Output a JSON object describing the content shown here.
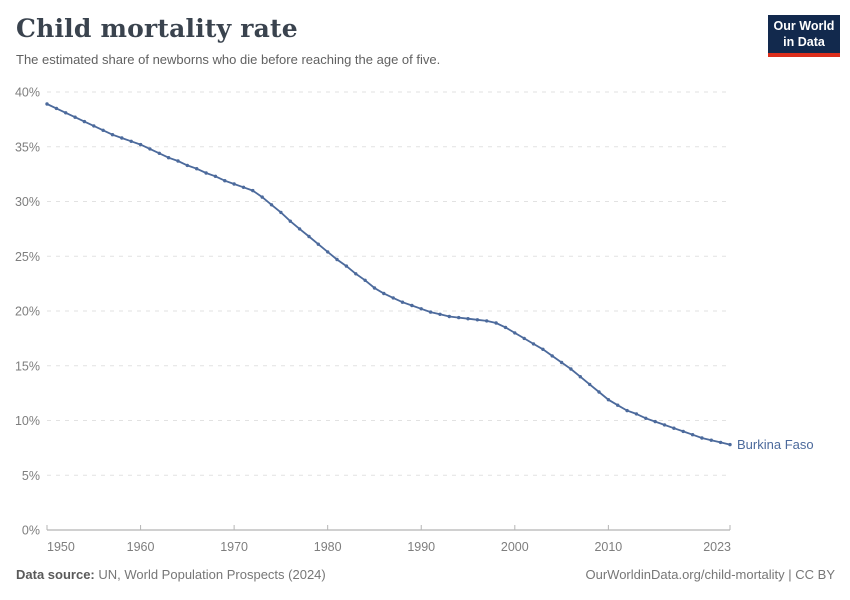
{
  "header": {
    "title": "Child mortality rate",
    "subtitle": "The estimated share of newborns who die before reaching the age of five.",
    "logo": {
      "line1": "Our World",
      "line2": "in Data",
      "bg_color": "#12294d",
      "accent_color": "#dc2e1c",
      "text_color": "#ffffff"
    }
  },
  "chart_data": {
    "type": "line",
    "title": "Child mortality rate",
    "subtitle": "The estimated share of newborns who die before reaching the age of five.",
    "unit": "%",
    "ylim": [
      0,
      40
    ],
    "grid": "horizontal-dashed",
    "legend_position": "entity-label-at-line-end",
    "x": [
      1950,
      1951,
      1952,
      1953,
      1954,
      1955,
      1956,
      1957,
      1958,
      1959,
      1960,
      1961,
      1962,
      1963,
      1964,
      1965,
      1966,
      1967,
      1968,
      1969,
      1970,
      1971,
      1972,
      1973,
      1974,
      1975,
      1976,
      1977,
      1978,
      1979,
      1980,
      1981,
      1982,
      1983,
      1984,
      1985,
      1986,
      1987,
      1988,
      1989,
      1990,
      1991,
      1992,
      1993,
      1994,
      1995,
      1996,
      1997,
      1998,
      1999,
      2000,
      2001,
      2002,
      2003,
      2004,
      2005,
      2006,
      2007,
      2008,
      2009,
      2010,
      2011,
      2012,
      2013,
      2014,
      2015,
      2016,
      2017,
      2018,
      2019,
      2020,
      2021,
      2022,
      2023
    ],
    "series": [
      {
        "name": "Burkina Faso",
        "color": "#4c6a9c",
        "values": [
          38.9,
          38.5,
          38.1,
          37.7,
          37.3,
          36.9,
          36.5,
          36.1,
          35.8,
          35.5,
          35.2,
          34.8,
          34.4,
          34.0,
          33.7,
          33.3,
          33.0,
          32.6,
          32.3,
          31.9,
          31.6,
          31.3,
          31.0,
          30.4,
          29.7,
          29.0,
          28.2,
          27.5,
          26.8,
          26.1,
          25.4,
          24.7,
          24.1,
          23.4,
          22.8,
          22.1,
          21.6,
          21.2,
          20.8,
          20.5,
          20.2,
          19.9,
          19.7,
          19.5,
          19.4,
          19.3,
          19.2,
          19.1,
          18.9,
          18.5,
          18.0,
          17.5,
          17.0,
          16.5,
          15.9,
          15.3,
          14.7,
          14.0,
          13.3,
          12.6,
          11.9,
          11.4,
          10.9,
          10.6,
          10.2,
          9.9,
          9.6,
          9.3,
          9.0,
          8.7,
          8.4,
          8.2,
          8.0,
          7.8
        ]
      }
    ],
    "y_ticks": [
      {
        "value": 0,
        "label": "0%"
      },
      {
        "value": 5,
        "label": "5%"
      },
      {
        "value": 10,
        "label": "10%"
      },
      {
        "value": 15,
        "label": "15%"
      },
      {
        "value": 20,
        "label": "20%"
      },
      {
        "value": 25,
        "label": "25%"
      },
      {
        "value": 30,
        "label": "30%"
      },
      {
        "value": 35,
        "label": "35%"
      },
      {
        "value": 40,
        "label": "40%"
      }
    ],
    "x_ticks": [
      1950,
      1960,
      1970,
      1980,
      1990,
      2000,
      2010,
      2023
    ]
  },
  "footer": {
    "source_label": "Data source:",
    "source_text": " UN, World Population Prospects (2024)",
    "credit": "OurWorldinData.org/child-mortality | CC BY"
  },
  "colors": {
    "series": "#4c6a9c",
    "grid": "#e2e2e2",
    "axis": "#a1a1a1",
    "tick": "#b5b5b5",
    "tick_label": "#7e7e7e",
    "title": "#3a434e",
    "subtitle": "#616161",
    "footer": "#777777"
  }
}
